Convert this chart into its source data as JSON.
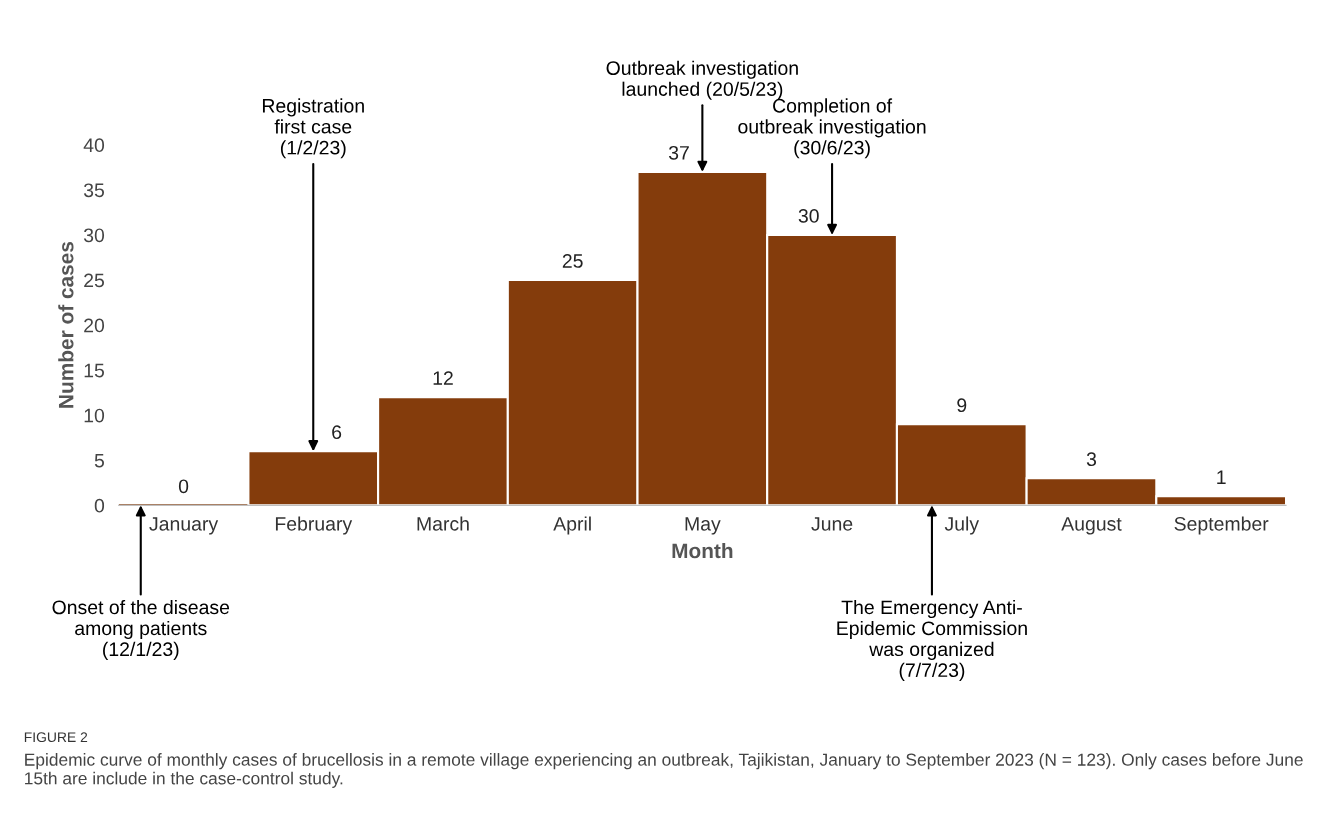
{
  "chart_data": {
    "type": "bar",
    "xlabel": "Month",
    "ylabel": "Number of cases",
    "categories": [
      "January",
      "February",
      "March",
      "April",
      "May",
      "June",
      "July",
      "August",
      "September"
    ],
    "values": [
      0,
      6,
      12,
      25,
      37,
      30,
      9,
      3,
      1
    ],
    "color": "#843c0c",
    "data_labels": true,
    "ylim": [
      0,
      40
    ],
    "yticks": [
      0,
      5,
      10,
      15,
      20,
      25,
      30,
      35,
      40
    ],
    "grid": false,
    "legend": false,
    "annotations": [
      "Onset of the disease\namong patients\n(12/1/23)",
      {
        "text": "Registration\nfirst case\n(1/2/23)",
        "x": "February",
        "y": 6
      },
      {
        "text": "Outbreak investigation\nlaunched (20/5/23)",
        "x": "May",
        "y": 37
      },
      {
        "text": "Completion of\noutbreak investigation\n(30/6/23)",
        "x": "June",
        "y": 30
      },
      "The Emergency Anti-\nEpidemic Commission\nwas organized\n(7/7/23)",
      "FIGURE 2",
      "Epidemic curve of monthly cases of brucellosis in a remote village experiencing an outbreak, Tajikistan, January to September 2023 (N = 123). Only cases before June 15th are include in the case-control study."
    ]
  }
}
